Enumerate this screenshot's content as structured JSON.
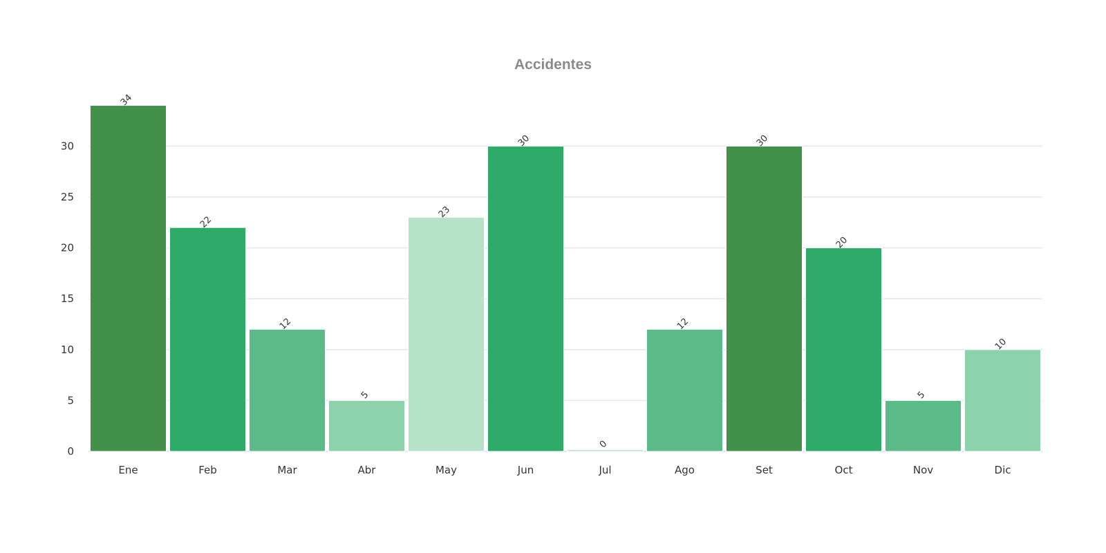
{
  "chart_data": {
    "type": "bar",
    "title": "Accidentes",
    "xlabel": "",
    "ylabel": "",
    "categories": [
      "Ene",
      "Feb",
      "Mar",
      "Abr",
      "May",
      "Jun",
      "Jul",
      "Ago",
      "Set",
      "Oct",
      "Nov",
      "Dic"
    ],
    "values": [
      34,
      22,
      12,
      5,
      23,
      30,
      0,
      12,
      30,
      20,
      5,
      10
    ],
    "colors": [
      "#43904a",
      "#2eaa69",
      "#5abb89",
      "#8ed1ad",
      "#b6e2ca",
      "#2eaa69",
      "#b6e2ca",
      "#5abb89",
      "#43904a",
      "#2eaa69",
      "#5abb89",
      "#8ed1ad"
    ],
    "yticks": [
      0,
      5,
      10,
      15,
      20,
      25,
      30
    ],
    "ylim": [
      0,
      34
    ],
    "grid": true,
    "legend": "none"
  }
}
